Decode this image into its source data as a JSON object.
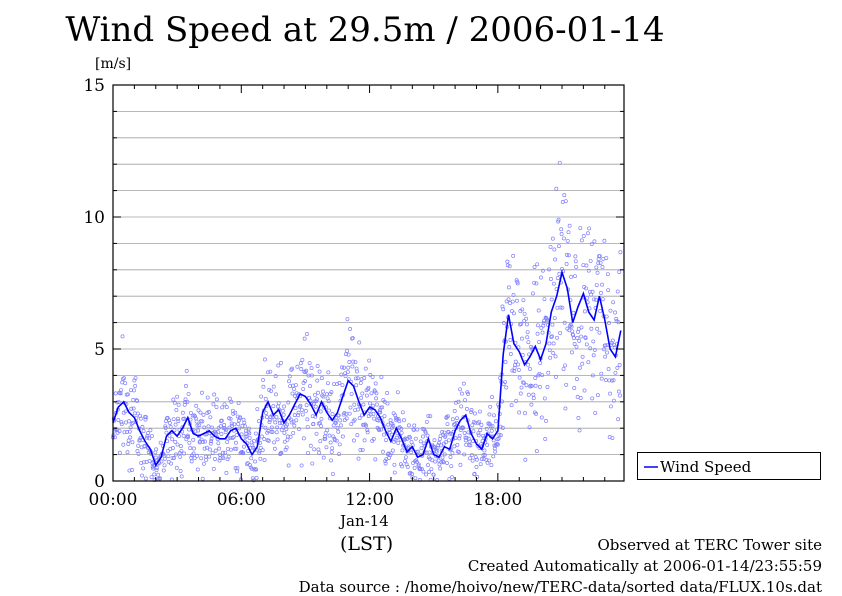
{
  "title": "Wind Speed at 29.5m / 2006-01-14",
  "unit_label": "[m/s]",
  "xaxis": {
    "date_label": "Jan-14",
    "tz_label": "(LST)"
  },
  "legend": {
    "label": "Wind Speed"
  },
  "footer": {
    "line1": "Observed at TERC Tower site",
    "line2": "Created Automatically at 2006-01-14/23:55:59",
    "line3": "Data source : /home/hoivo/new/TERC-data/sorted  data/FLUX.10s.dat"
  },
  "colors": {
    "series": "#0000ff",
    "scatter": "#8080ff",
    "grid": "#a0a0a0"
  },
  "chart_data": {
    "type": "line",
    "x_unit": "hour of day (LST)",
    "xlim": [
      0,
      23.9
    ],
    "ylim": [
      0,
      15
    ],
    "xticks": [
      0,
      6,
      12,
      18
    ],
    "xtick_labels": [
      "00:00",
      "06:00",
      "12:00",
      "18:00"
    ],
    "yticks": [
      0,
      5,
      10,
      15
    ],
    "ytick_labels": [
      "0",
      "5",
      "10",
      "15"
    ],
    "grid": true,
    "legend_position": "right",
    "series": [
      {
        "name": "Wind Speed",
        "style": "line with scattered raw samples",
        "x": [
          0.0,
          0.25,
          0.5,
          0.75,
          1.0,
          1.25,
          1.5,
          1.75,
          2.0,
          2.25,
          2.5,
          2.75,
          3.0,
          3.25,
          3.5,
          3.75,
          4.0,
          4.25,
          4.5,
          4.75,
          5.0,
          5.25,
          5.5,
          5.75,
          6.0,
          6.25,
          6.5,
          6.75,
          7.0,
          7.25,
          7.5,
          7.75,
          8.0,
          8.25,
          8.5,
          8.75,
          9.0,
          9.25,
          9.5,
          9.75,
          10.0,
          10.25,
          10.5,
          10.75,
          11.0,
          11.25,
          11.5,
          11.75,
          12.0,
          12.25,
          12.5,
          12.75,
          13.0,
          13.25,
          13.5,
          13.75,
          14.0,
          14.25,
          14.5,
          14.75,
          15.0,
          15.25,
          15.5,
          15.75,
          16.0,
          16.25,
          16.5,
          16.75,
          17.0,
          17.25,
          17.5,
          17.75,
          18.0,
          18.25,
          18.5,
          18.75,
          19.0,
          19.25,
          19.5,
          19.75,
          20.0,
          20.25,
          20.5,
          20.75,
          21.0,
          21.25,
          21.5,
          21.75,
          22.0,
          22.25,
          22.5,
          22.75,
          23.0,
          23.25,
          23.5,
          23.75
        ],
        "y": [
          2.2,
          2.8,
          3.0,
          2.6,
          2.4,
          1.9,
          1.5,
          1.2,
          0.6,
          0.9,
          1.7,
          1.9,
          1.7,
          2.0,
          2.4,
          1.8,
          1.7,
          1.8,
          1.9,
          1.7,
          1.6,
          1.6,
          1.9,
          2.0,
          1.6,
          1.4,
          1.0,
          1.3,
          2.6,
          3.0,
          2.5,
          2.7,
          2.2,
          2.5,
          2.9,
          3.3,
          3.2,
          2.9,
          2.5,
          3.0,
          2.6,
          2.3,
          2.6,
          3.2,
          3.8,
          3.6,
          3.0,
          2.5,
          2.8,
          2.7,
          2.4,
          1.9,
          1.5,
          2.0,
          1.6,
          1.1,
          1.3,
          0.9,
          1.0,
          1.6,
          1.0,
          0.9,
          1.3,
          1.2,
          1.9,
          2.3,
          2.5,
          1.8,
          1.4,
          1.2,
          1.8,
          1.6,
          1.9,
          4.8,
          6.3,
          5.2,
          4.9,
          4.4,
          4.7,
          5.1,
          4.6,
          5.2,
          6.4,
          7.0,
          7.9,
          7.3,
          6.0,
          6.6,
          7.1,
          6.4,
          6.1,
          7.0,
          6.1,
          5.0,
          4.7,
          5.7
        ]
      }
    ]
  }
}
